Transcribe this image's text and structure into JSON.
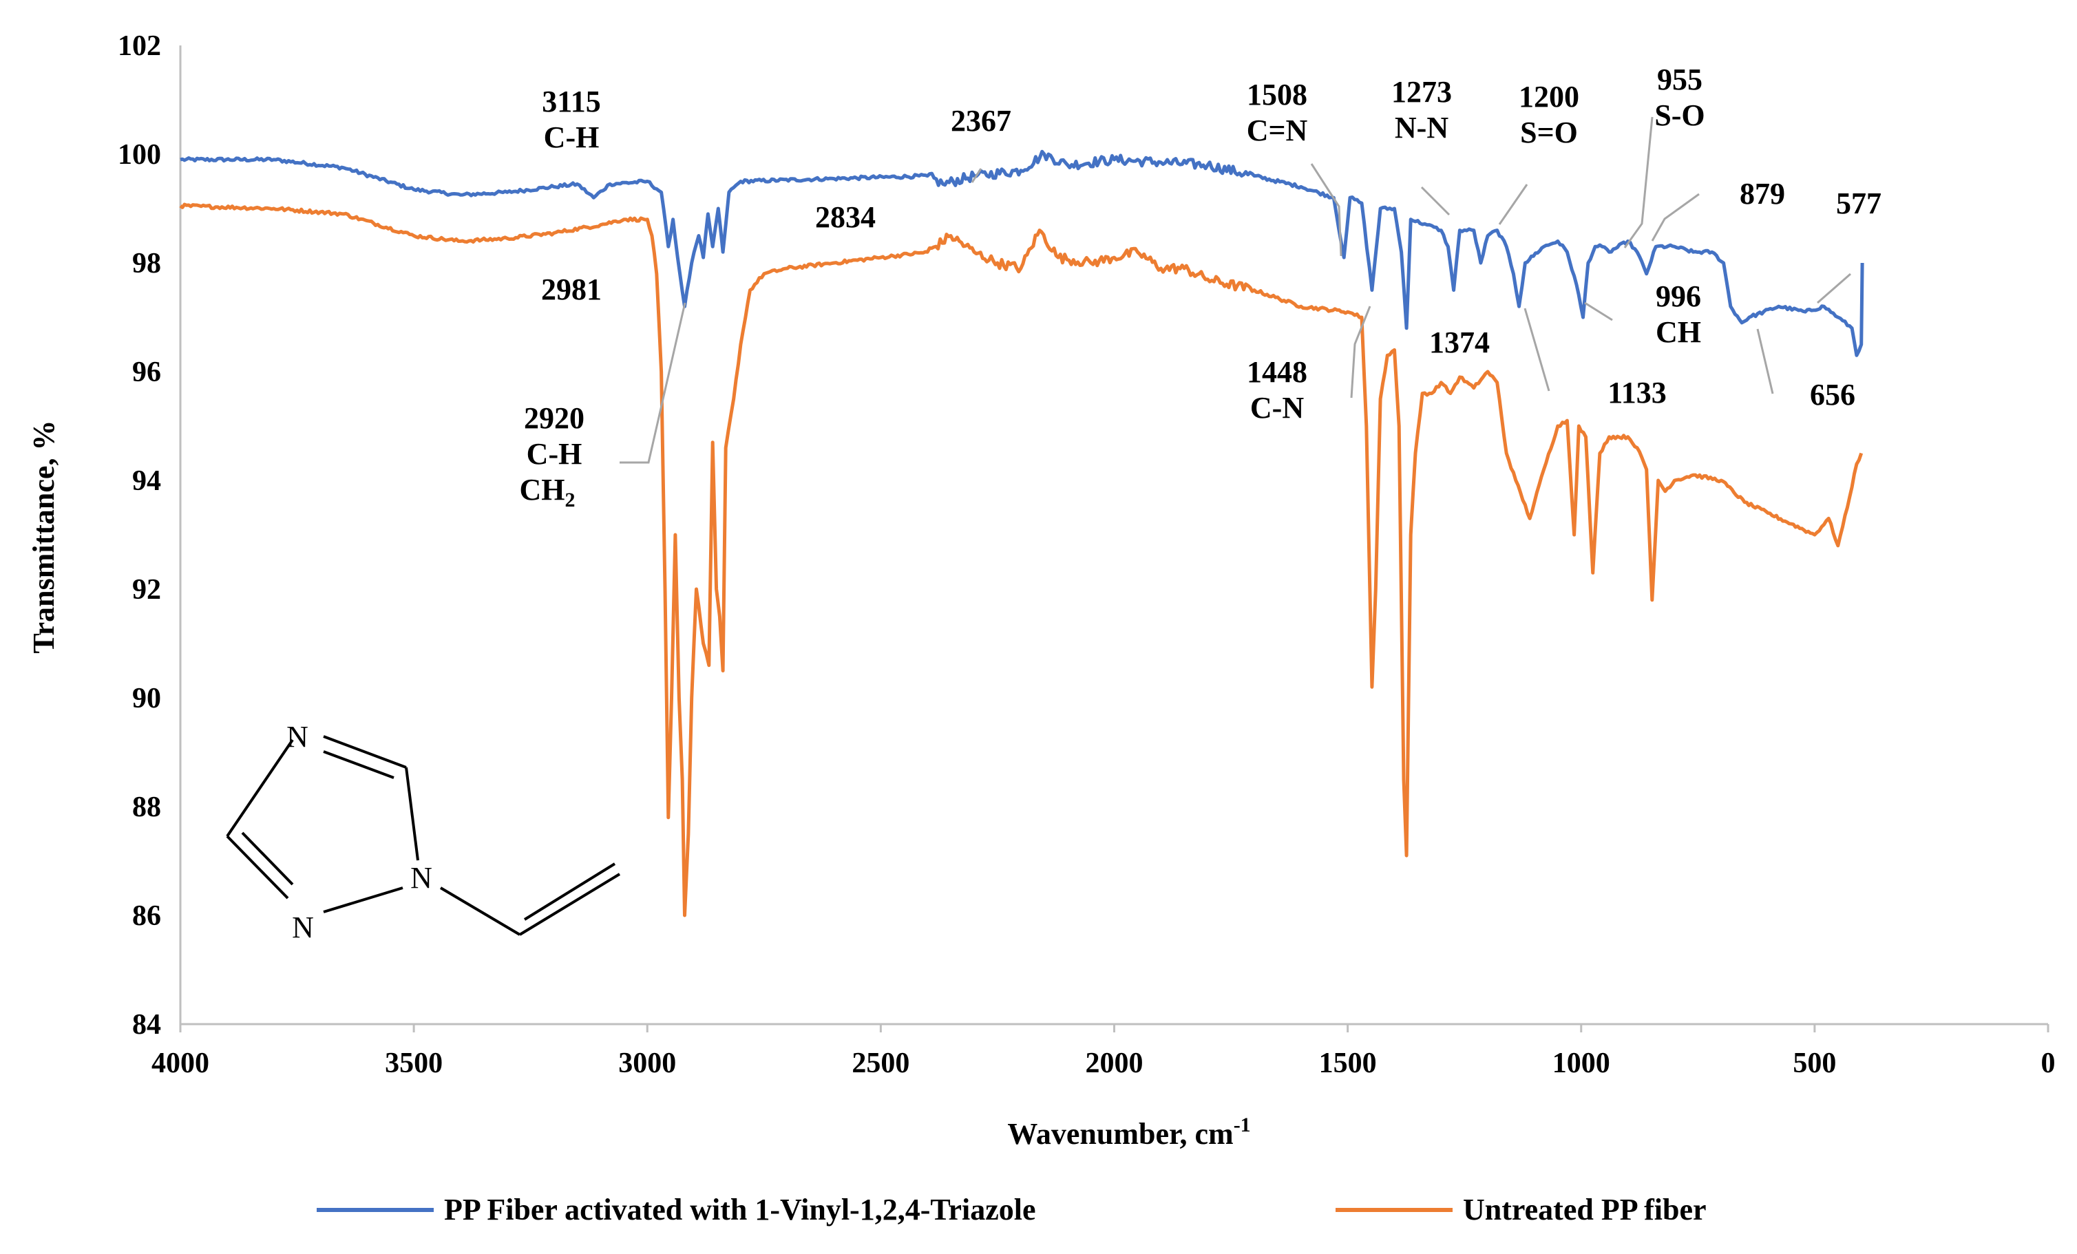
{
  "chart_data": {
    "type": "line",
    "title": "",
    "xlabel": "Wavenumber, cm",
    "xlabel_sup": "-1",
    "ylabel": "Transmittance, %",
    "xlim": [
      4000,
      0
    ],
    "ylim": [
      84,
      102
    ],
    "x_ticks": [
      "4000",
      "3500",
      "3000",
      "2500",
      "2000",
      "1500",
      "1000",
      "500",
      "0"
    ],
    "y_ticks": [
      "84",
      "86",
      "88",
      "90",
      "92",
      "94",
      "96",
      "98",
      "100",
      "102"
    ],
    "grid": false,
    "legend_position": "bottom",
    "series": [
      {
        "name": "PP Fiber activated with 1-Vinyl-1,2,4-Triazole",
        "color": "#4472C4",
        "points": [
          [
            4000,
            99.9
          ],
          [
            3800,
            99.9
          ],
          [
            3650,
            99.75
          ],
          [
            3500,
            99.35
          ],
          [
            3400,
            99.25
          ],
          [
            3300,
            99.3
          ],
          [
            3200,
            99.4
          ],
          [
            3150,
            99.45
          ],
          [
            3115,
            99.2
          ],
          [
            3080,
            99.45
          ],
          [
            3000,
            99.5
          ],
          [
            2970,
            99.3
          ],
          [
            2955,
            98.3
          ],
          [
            2945,
            98.8
          ],
          [
            2935,
            98.1
          ],
          [
            2920,
            97.2
          ],
          [
            2905,
            98.0
          ],
          [
            2890,
            98.5
          ],
          [
            2880,
            98.1
          ],
          [
            2870,
            98.9
          ],
          [
            2860,
            98.3
          ],
          [
            2848,
            99.0
          ],
          [
            2838,
            98.2
          ],
          [
            2825,
            99.3
          ],
          [
            2800,
            99.5
          ],
          [
            2600,
            99.55
          ],
          [
            2400,
            99.6
          ],
          [
            2367,
            99.45
          ],
          [
            2300,
            99.6
          ],
          [
            2200,
            99.7
          ],
          [
            2150,
            100.0
          ],
          [
            2100,
            99.8
          ],
          [
            2000,
            99.9
          ],
          [
            1900,
            99.85
          ],
          [
            1800,
            99.8
          ],
          [
            1700,
            99.6
          ],
          [
            1600,
            99.4
          ],
          [
            1530,
            99.2
          ],
          [
            1508,
            98.1
          ],
          [
            1495,
            99.2
          ],
          [
            1470,
            99.1
          ],
          [
            1448,
            97.5
          ],
          [
            1430,
            99.0
          ],
          [
            1400,
            99.0
          ],
          [
            1385,
            98.2
          ],
          [
            1374,
            96.8
          ],
          [
            1365,
            98.8
          ],
          [
            1330,
            98.7
          ],
          [
            1300,
            98.6
          ],
          [
            1285,
            98.3
          ],
          [
            1273,
            97.5
          ],
          [
            1260,
            98.6
          ],
          [
            1230,
            98.6
          ],
          [
            1215,
            98.0
          ],
          [
            1200,
            98.5
          ],
          [
            1180,
            98.6
          ],
          [
            1160,
            98.3
          ],
          [
            1145,
            97.8
          ],
          [
            1133,
            97.2
          ],
          [
            1120,
            98.0
          ],
          [
            1080,
            98.3
          ],
          [
            1050,
            98.4
          ],
          [
            1030,
            98.2
          ],
          [
            1010,
            97.6
          ],
          [
            996,
            97.0
          ],
          [
            985,
            98.0
          ],
          [
            970,
            98.3
          ],
          [
            955,
            98.3
          ],
          [
            940,
            98.2
          ],
          [
            900,
            98.4
          ],
          [
            880,
            98.2
          ],
          [
            860,
            97.8
          ],
          [
            840,
            98.3
          ],
          [
            800,
            98.3
          ],
          [
            760,
            98.2
          ],
          [
            720,
            98.2
          ],
          [
            695,
            98.0
          ],
          [
            680,
            97.2
          ],
          [
            656,
            96.9
          ],
          [
            640,
            97.0
          ],
          [
            577,
            97.2
          ],
          [
            520,
            97.1
          ],
          [
            480,
            97.2
          ],
          [
            450,
            97.0
          ],
          [
            420,
            96.8
          ],
          [
            410,
            96.3
          ],
          [
            400,
            96.5
          ],
          [
            398,
            98.0
          ]
        ]
      },
      {
        "name": "Untreated PP fiber",
        "color": "#ED7D31",
        "points": [
          [
            4000,
            99.05
          ],
          [
            3800,
            99.0
          ],
          [
            3650,
            98.9
          ],
          [
            3500,
            98.5
          ],
          [
            3400,
            98.4
          ],
          [
            3300,
            98.45
          ],
          [
            3200,
            98.55
          ],
          [
            3100,
            98.7
          ],
          [
            3050,
            98.8
          ],
          [
            3000,
            98.8
          ],
          [
            2990,
            98.5
          ],
          [
            2980,
            97.8
          ],
          [
            2970,
            96.0
          ],
          [
            2962,
            92.0
          ],
          [
            2955,
            87.8
          ],
          [
            2948,
            90.0
          ],
          [
            2940,
            93.0
          ],
          [
            2932,
            90.0
          ],
          [
            2925,
            88.5
          ],
          [
            2920,
            86.0
          ],
          [
            2912,
            87.5
          ],
          [
            2905,
            90.0
          ],
          [
            2895,
            92.0
          ],
          [
            2880,
            91.0
          ],
          [
            2868,
            90.6
          ],
          [
            2860,
            94.7
          ],
          [
            2852,
            92.0
          ],
          [
            2845,
            91.5
          ],
          [
            2838,
            90.5
          ],
          [
            2832,
            94.6
          ],
          [
            2815,
            95.5
          ],
          [
            2800,
            96.5
          ],
          [
            2780,
            97.5
          ],
          [
            2750,
            97.8
          ],
          [
            2700,
            97.9
          ],
          [
            2600,
            98.0
          ],
          [
            2500,
            98.1
          ],
          [
            2400,
            98.2
          ],
          [
            2350,
            98.5
          ],
          [
            2300,
            98.2
          ],
          [
            2250,
            98.0
          ],
          [
            2200,
            97.9
          ],
          [
            2160,
            98.6
          ],
          [
            2120,
            98.1
          ],
          [
            2050,
            98.0
          ],
          [
            2000,
            98.1
          ],
          [
            1950,
            98.2
          ],
          [
            1900,
            97.9
          ],
          [
            1850,
            97.9
          ],
          [
            1800,
            97.7
          ],
          [
            1700,
            97.5
          ],
          [
            1600,
            97.2
          ],
          [
            1500,
            97.1
          ],
          [
            1470,
            97.0
          ],
          [
            1460,
            95.0
          ],
          [
            1448,
            90.2
          ],
          [
            1440,
            92.0
          ],
          [
            1430,
            95.5
          ],
          [
            1415,
            96.3
          ],
          [
            1400,
            96.4
          ],
          [
            1390,
            95.0
          ],
          [
            1380,
            88.5
          ],
          [
            1374,
            87.1
          ],
          [
            1365,
            93.0
          ],
          [
            1355,
            94.5
          ],
          [
            1340,
            95.6
          ],
          [
            1320,
            95.6
          ],
          [
            1300,
            95.8
          ],
          [
            1280,
            95.6
          ],
          [
            1260,
            95.9
          ],
          [
            1230,
            95.7
          ],
          [
            1200,
            96.0
          ],
          [
            1180,
            95.8
          ],
          [
            1160,
            94.5
          ],
          [
            1140,
            94.0
          ],
          [
            1110,
            93.3
          ],
          [
            1080,
            94.2
          ],
          [
            1050,
            95.0
          ],
          [
            1030,
            95.1
          ],
          [
            1015,
            93.0
          ],
          [
            1005,
            95.0
          ],
          [
            990,
            94.8
          ],
          [
            975,
            92.3
          ],
          [
            960,
            94.5
          ],
          [
            940,
            94.8
          ],
          [
            900,
            94.8
          ],
          [
            880,
            94.6
          ],
          [
            860,
            94.2
          ],
          [
            848,
            91.8
          ],
          [
            835,
            94.0
          ],
          [
            820,
            93.8
          ],
          [
            800,
            94.0
          ],
          [
            760,
            94.1
          ],
          [
            700,
            94.0
          ],
          [
            650,
            93.6
          ],
          [
            600,
            93.4
          ],
          [
            550,
            93.2
          ],
          [
            500,
            93.0
          ],
          [
            470,
            93.3
          ],
          [
            450,
            92.8
          ],
          [
            430,
            93.5
          ],
          [
            410,
            94.3
          ],
          [
            400,
            94.5
          ]
        ]
      }
    ],
    "annotations": [
      {
        "lines": [
          "3115",
          "C-H"
        ]
      },
      {
        "lines": [
          "2981"
        ]
      },
      {
        "lines": [
          "2920",
          "C-H"
        ],
        "extra": {
          "main": "CH",
          "sub": "2"
        }
      },
      {
        "lines": [
          "2834"
        ]
      },
      {
        "lines": [
          "2367"
        ]
      },
      {
        "lines": [
          "1508",
          "C=N"
        ]
      },
      {
        "lines": [
          "1448",
          "C-N"
        ]
      },
      {
        "lines": [
          "1273",
          "N-N"
        ]
      },
      {
        "lines": [
          "1374"
        ]
      },
      {
        "lines": [
          "1200",
          "S=O"
        ]
      },
      {
        "lines": [
          "1133"
        ]
      },
      {
        "lines": [
          "955",
          "S-O"
        ]
      },
      {
        "lines": [
          "879"
        ]
      },
      {
        "lines": [
          "996",
          "CH"
        ]
      },
      {
        "lines": [
          "577"
        ]
      },
      {
        "lines": [
          "656"
        ]
      }
    ],
    "molecule_atoms": [
      "N",
      "N",
      "N"
    ]
  }
}
